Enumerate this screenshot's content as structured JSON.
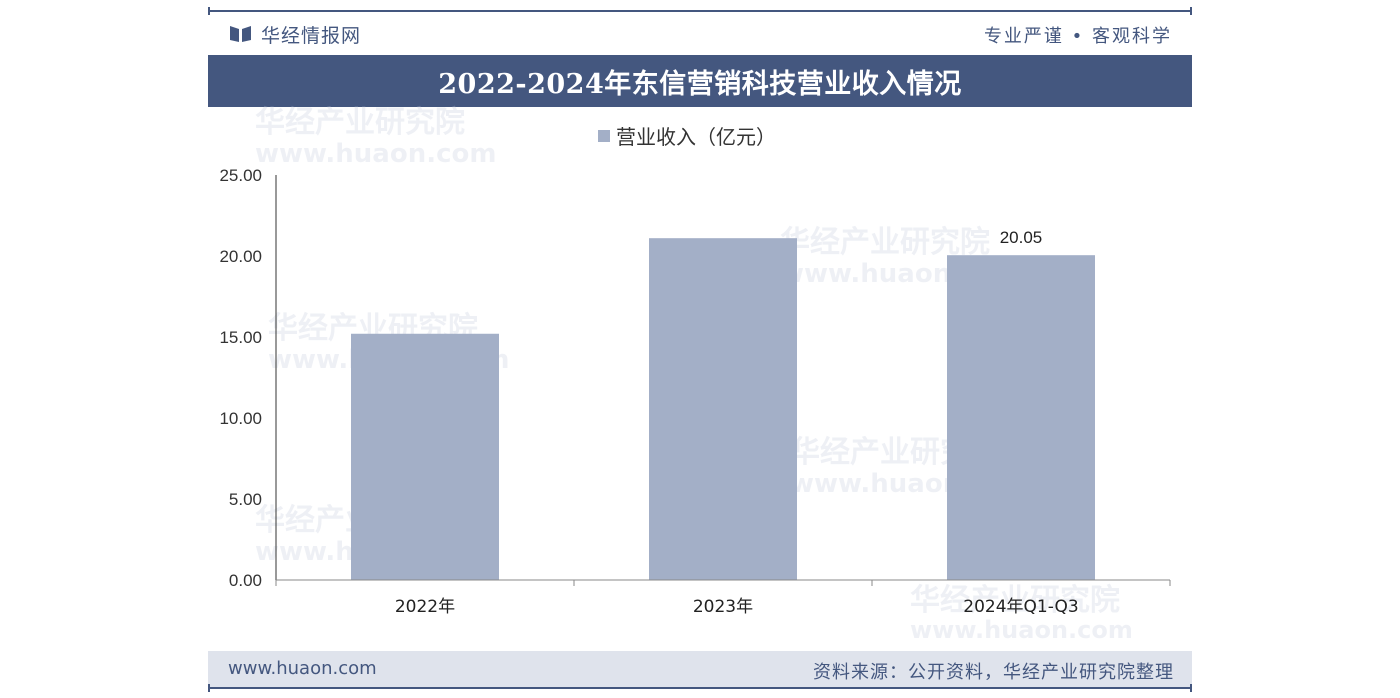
{
  "header": {
    "brand_name": "华经情报网",
    "slogan": "专业严谨 • 客观科学",
    "title": "2022-2024年东信营销科技营业收入情况"
  },
  "footer": {
    "website": "www.huaon.com",
    "source": "资料来源：公开资料，华经产业研究院整理"
  },
  "watermark": {
    "name": "华经产业研究院",
    "url": "www.huaon.com"
  },
  "colors": {
    "accent": "#44577f",
    "bar": "#a3afc7",
    "footer_bg": "#dfe3ec"
  },
  "chart_data": {
    "type": "bar",
    "title": "2022-2024年东信营销科技营业收入情况",
    "categories": [
      "2022年",
      "2023年",
      "2024年Q1-Q3"
    ],
    "series": [
      {
        "name": "营业收入（亿元）",
        "values": [
          15.2,
          21.1,
          20.05
        ]
      }
    ],
    "data_labels": [
      "",
      "",
      "20.05"
    ],
    "yticks": [
      "0.00",
      "5.00",
      "10.00",
      "15.00",
      "20.00",
      "25.00"
    ],
    "ylim": [
      0,
      25
    ],
    "xlabel": "",
    "ylabel": "",
    "grid": false,
    "legend_position": "top-center"
  }
}
